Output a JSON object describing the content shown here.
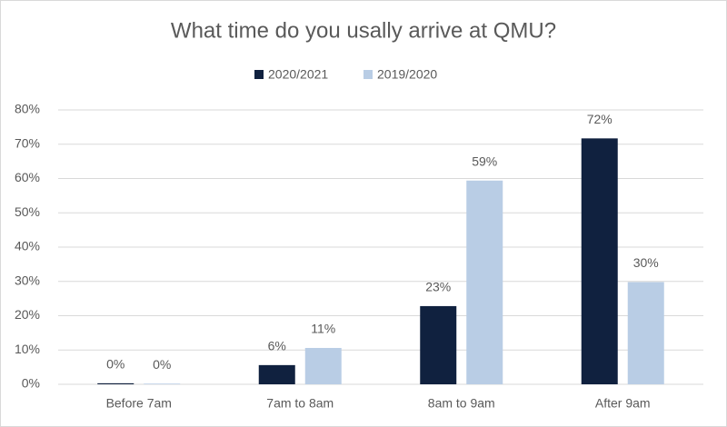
{
  "chart_data": {
    "type": "bar",
    "title": "What time do you usally arrive at QMU?",
    "categories": [
      "Before 7am",
      "7am to 8am",
      "8am to 9am",
      "After 9am"
    ],
    "series": [
      {
        "name": "2020/2021",
        "color": "#10213f",
        "values": [
          0.3,
          5.6,
          22.8,
          71.7
        ],
        "value_labels": [
          "0%",
          "6%",
          "23%",
          "72%"
        ]
      },
      {
        "name": "2019/2020",
        "color": "#b9cde5",
        "values": [
          0.2,
          10.6,
          59.4,
          29.8
        ],
        "value_labels": [
          "0%",
          "11%",
          "59%",
          "30%"
        ]
      }
    ],
    "ylim": [
      0,
      80
    ],
    "yticks": [
      {
        "value": 0,
        "label": "0%"
      },
      {
        "value": 10,
        "label": "10%"
      },
      {
        "value": 20,
        "label": "20%"
      },
      {
        "value": 30,
        "label": "30%"
      },
      {
        "value": 40,
        "label": "40%"
      },
      {
        "value": 50,
        "label": "50%"
      },
      {
        "value": 60,
        "label": "60%"
      },
      {
        "value": 70,
        "label": "70%"
      },
      {
        "value": 80,
        "label": "80%"
      }
    ],
    "grid": true,
    "legend": "top"
  }
}
